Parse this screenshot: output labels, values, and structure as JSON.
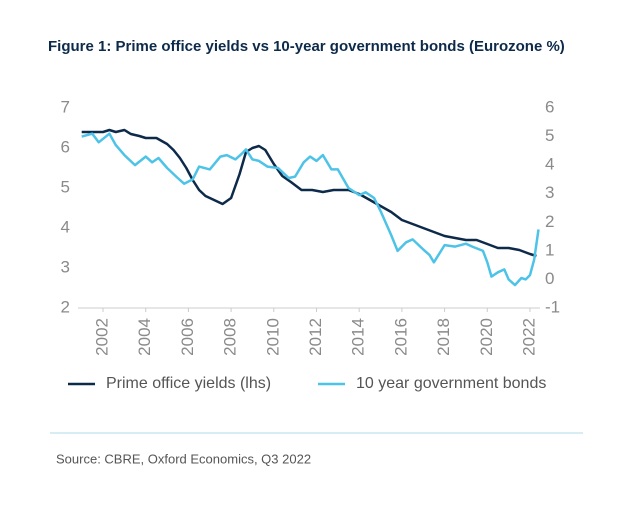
{
  "chart_data": {
    "type": "line",
    "title": "Figure 1: Prime office yields vs 10-year government bonds (Eurozone %)",
    "source": "Source: CBRE, Oxford Economics, Q3 2022",
    "xlim": [
      2000.8,
      2022.4
    ],
    "xticks": [
      2002,
      2004,
      2006,
      2008,
      2010,
      2012,
      2014,
      2016,
      2018,
      2020,
      2022
    ],
    "ylim": [
      2,
      7
    ],
    "yticks": [
      7,
      6,
      5,
      4,
      3,
      2
    ],
    "y2lim": [
      -1,
      6
    ],
    "y2ticks": [
      6,
      5,
      4,
      3,
      2,
      1,
      0,
      -1
    ],
    "legend": "bottom",
    "series": [
      {
        "name": "Prime office yields (lhs)",
        "color": "#0d2a4a",
        "x": [
          2001.0,
          2001.5,
          2002.0,
          2002.3,
          2002.6,
          2003.0,
          2003.3,
          2003.7,
          2004.0,
          2004.5,
          2005.0,
          2005.3,
          2005.6,
          2005.9,
          2006.2,
          2006.5,
          2006.8,
          2007.0,
          2007.6,
          2008.0,
          2008.4,
          2008.7,
          2009.0,
          2009.3,
          2009.6,
          2010.0,
          2010.4,
          2010.8,
          2011.3,
          2011.8,
          2012.3,
          2012.8,
          2013.5,
          2014.0,
          2014.5,
          2015.0,
          2015.5,
          2016.0,
          2016.5,
          2017.0,
          2017.5,
          2018.0,
          2018.5,
          2019.0,
          2019.5,
          2020.0,
          2020.5,
          2021.0,
          2021.5,
          2022.0,
          2022.3
        ],
        "values": [
          6.4,
          6.4,
          6.4,
          6.45,
          6.4,
          6.45,
          6.35,
          6.3,
          6.25,
          6.25,
          6.1,
          5.95,
          5.75,
          5.5,
          5.2,
          4.95,
          4.8,
          4.75,
          4.6,
          4.75,
          5.35,
          5.9,
          6.0,
          6.05,
          5.95,
          5.6,
          5.3,
          5.15,
          4.95,
          4.95,
          4.9,
          4.95,
          4.95,
          4.85,
          4.7,
          4.55,
          4.4,
          4.2,
          4.1,
          4.0,
          3.9,
          3.8,
          3.75,
          3.7,
          3.7,
          3.6,
          3.5,
          3.5,
          3.45,
          3.35,
          3.3
        ]
      },
      {
        "name": "10 year government bonds",
        "color": "#4dc3e8",
        "axis": "y2",
        "x": [
          2001.0,
          2001.5,
          2001.8,
          2002.3,
          2002.6,
          2003.0,
          2003.5,
          2004.0,
          2004.3,
          2004.6,
          2005.0,
          2005.5,
          2005.8,
          2006.2,
          2006.5,
          2007.0,
          2007.5,
          2007.8,
          2008.2,
          2008.5,
          2008.7,
          2009.0,
          2009.3,
          2009.7,
          2010.2,
          2010.7,
          2011.0,
          2011.4,
          2011.7,
          2012.0,
          2012.3,
          2012.7,
          2013.0,
          2013.5,
          2014.0,
          2014.3,
          2014.7,
          2015.0,
          2015.5,
          2015.8,
          2016.2,
          2016.5,
          2017.0,
          2017.3,
          2017.5,
          2018.0,
          2018.5,
          2019.0,
          2019.3,
          2019.8,
          2020.0,
          2020.2,
          2020.5,
          2020.8,
          2021.0,
          2021.3,
          2021.6,
          2021.8,
          2022.0,
          2022.2,
          2022.4
        ],
        "values": [
          5.0,
          5.1,
          4.8,
          5.1,
          4.7,
          4.35,
          4.0,
          4.3,
          4.1,
          4.25,
          3.9,
          3.55,
          3.35,
          3.5,
          3.95,
          3.85,
          4.3,
          4.35,
          4.2,
          4.4,
          4.55,
          4.2,
          4.15,
          3.95,
          3.9,
          3.55,
          3.6,
          4.1,
          4.3,
          4.15,
          4.35,
          3.85,
          3.85,
          3.2,
          2.95,
          3.05,
          2.85,
          2.4,
          1.55,
          1.0,
          1.3,
          1.4,
          1.05,
          0.85,
          0.6,
          1.2,
          1.15,
          1.25,
          1.15,
          1.0,
          0.6,
          0.1,
          0.25,
          0.35,
          0.0,
          -0.2,
          0.05,
          0.0,
          0.15,
          0.7,
          1.75
        ]
      }
    ]
  }
}
